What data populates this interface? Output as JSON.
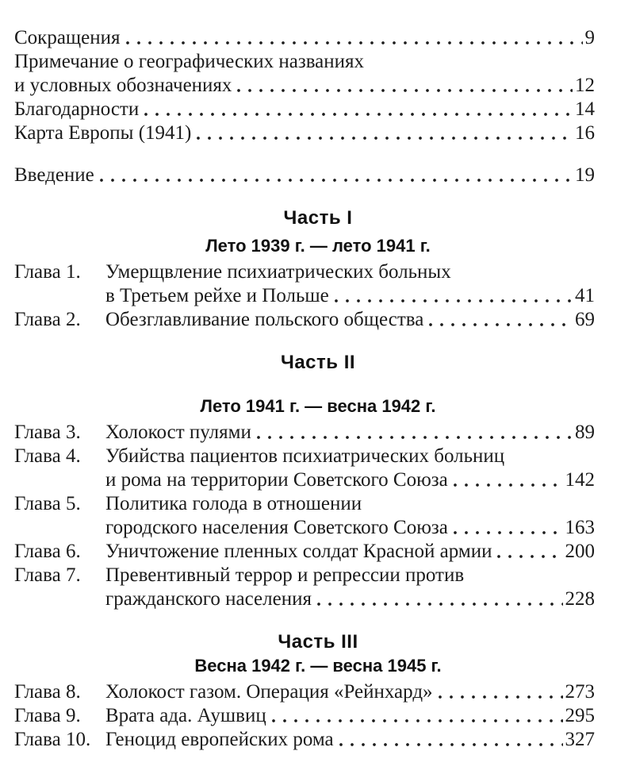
{
  "page": {
    "background_color": "#ffffff",
    "text_color": "#1b1b1b",
    "heading_color": "#111111"
  },
  "front_matter": [
    {
      "lines": [
        "Сокращения"
      ],
      "page": "9"
    },
    {
      "lines": [
        "Примечание о географических названиях",
        "и условных обозначениях"
      ],
      "page": "12"
    },
    {
      "lines": [
        "Благодарности"
      ],
      "page": "14"
    },
    {
      "lines": [
        "Карта Европы (1941)"
      ],
      "page": "16"
    }
  ],
  "intro": {
    "lines": [
      "Введение"
    ],
    "page": "19"
  },
  "parts": [
    {
      "title": "Часть I",
      "subtitle": "Лето 1939 г. — лето 1941 г.",
      "chapters": [
        {
          "label": "Глава 1.",
          "lines": [
            "Умерщвление психиатрических больных",
            "в Третьем рейхе и Польше"
          ],
          "page": "41"
        },
        {
          "label": "Глава 2.",
          "lines": [
            "Обезглавливание польского общества"
          ],
          "page": "69"
        }
      ]
    },
    {
      "title": "Часть II",
      "subtitle": "Лето 1941 г. — весна 1942 г.",
      "chapters": [
        {
          "label": "Глава 3.",
          "lines": [
            "Холокост пулями"
          ],
          "page": "89"
        },
        {
          "label": "Глава 4.",
          "lines": [
            "Убийства пациентов психиатрических больниц",
            "и рома на территории Советского Союза"
          ],
          "page": "142"
        },
        {
          "label": "Глава 5.",
          "lines": [
            "Политика голода в отношении",
            "городского населения Советского Союза"
          ],
          "page": "163"
        },
        {
          "label": "Глава 6.",
          "lines": [
            "Уничтожение пленных солдат Красной армии"
          ],
          "page": "200"
        },
        {
          "label": "Глава 7.",
          "lines": [
            "Превентивный террор и репрессии против",
            "гражданского населения"
          ],
          "page": "228"
        }
      ]
    },
    {
      "title": "Часть III",
      "subtitle": "Весна 1942 г. — весна 1945 г.",
      "chapters": [
        {
          "label": "Глава 8.",
          "lines": [
            "Холокост газом. Операция «Рейнхард»"
          ],
          "page": "273"
        },
        {
          "label": "Глава 9.",
          "lines": [
            "Врата ада. Аушвиц"
          ],
          "page": "295"
        },
        {
          "label": "Глава 10.",
          "lines": [
            "Геноцид европейских рома"
          ],
          "page": "327"
        }
      ]
    }
  ]
}
